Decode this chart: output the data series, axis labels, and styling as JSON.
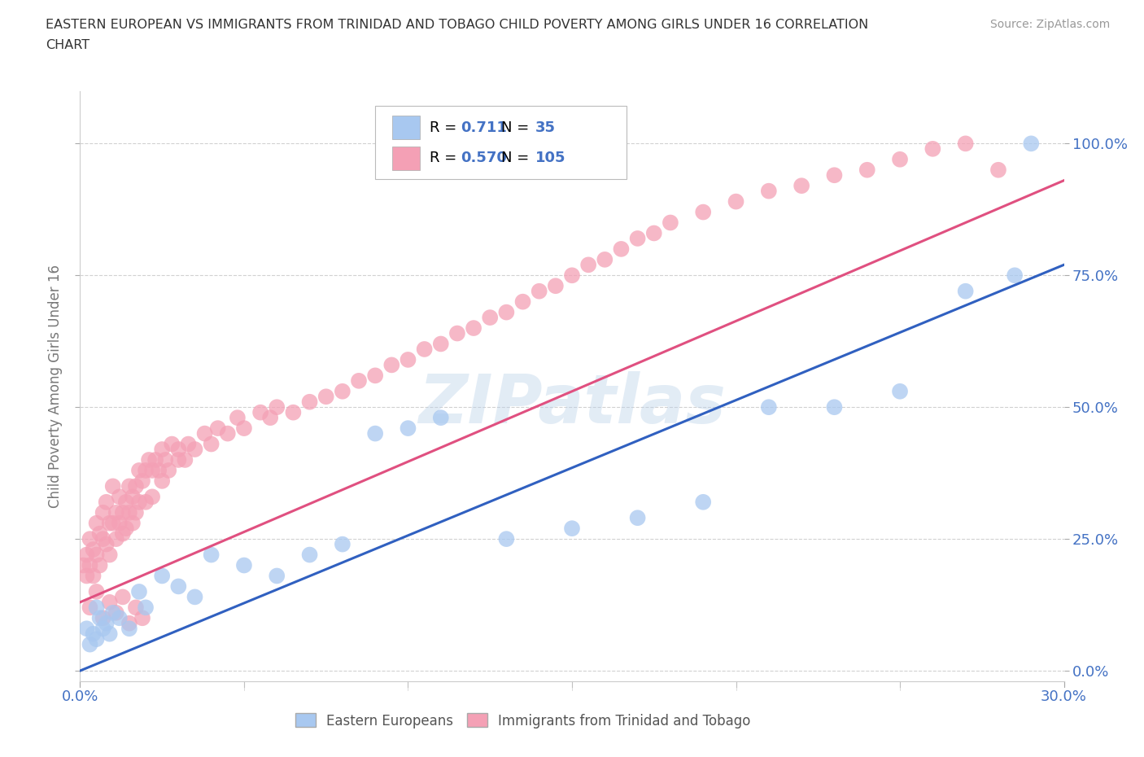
{
  "title_line1": "EASTERN EUROPEAN VS IMMIGRANTS FROM TRINIDAD AND TOBAGO CHILD POVERTY AMONG GIRLS UNDER 16 CORRELATION",
  "title_line2": "CHART",
  "source": "Source: ZipAtlas.com",
  "ylabel": "Child Poverty Among Girls Under 16",
  "xlim": [
    0.0,
    0.3
  ],
  "ylim": [
    -0.02,
    1.1
  ],
  "yticks": [
    0.0,
    0.25,
    0.5,
    0.75,
    1.0
  ],
  "ytick_labels": [
    "0.0%",
    "25.0%",
    "50.0%",
    "75.0%",
    "100.0%"
  ],
  "xticks": [
    0.0,
    0.3
  ],
  "xtick_labels": [
    "0.0%",
    "30.0%"
  ],
  "blue_R": "0.711",
  "blue_N": "35",
  "pink_R": "0.570",
  "pink_N": "105",
  "blue_color": "#A8C8F0",
  "pink_color": "#F4A0B5",
  "blue_line_color": "#3060C0",
  "pink_line_color": "#E05080",
  "grid_color": "#CCCCCC",
  "background_color": "#FFFFFF",
  "watermark": "ZIPatlas",
  "legend_color": "#4472C4",
  "blue_scatter_x": [
    0.002,
    0.003,
    0.004,
    0.005,
    0.005,
    0.006,
    0.007,
    0.008,
    0.009,
    0.01,
    0.012,
    0.015,
    0.018,
    0.02,
    0.025,
    0.03,
    0.035,
    0.04,
    0.05,
    0.06,
    0.07,
    0.08,
    0.09,
    0.1,
    0.11,
    0.13,
    0.15,
    0.17,
    0.19,
    0.21,
    0.23,
    0.25,
    0.27,
    0.285,
    0.29
  ],
  "blue_scatter_y": [
    0.08,
    0.05,
    0.07,
    0.12,
    0.06,
    0.1,
    0.08,
    0.09,
    0.07,
    0.11,
    0.1,
    0.08,
    0.15,
    0.12,
    0.18,
    0.16,
    0.14,
    0.22,
    0.2,
    0.18,
    0.22,
    0.24,
    0.45,
    0.46,
    0.48,
    0.25,
    0.27,
    0.29,
    0.32,
    0.5,
    0.5,
    0.53,
    0.72,
    0.75,
    1.0
  ],
  "pink_scatter_x": [
    0.001,
    0.002,
    0.002,
    0.003,
    0.003,
    0.004,
    0.004,
    0.005,
    0.005,
    0.006,
    0.006,
    0.007,
    0.007,
    0.008,
    0.008,
    0.009,
    0.009,
    0.01,
    0.01,
    0.011,
    0.011,
    0.012,
    0.012,
    0.013,
    0.013,
    0.014,
    0.014,
    0.015,
    0.015,
    0.016,
    0.016,
    0.017,
    0.017,
    0.018,
    0.018,
    0.019,
    0.02,
    0.02,
    0.021,
    0.022,
    0.022,
    0.023,
    0.024,
    0.025,
    0.025,
    0.026,
    0.027,
    0.028,
    0.03,
    0.03,
    0.032,
    0.033,
    0.035,
    0.038,
    0.04,
    0.042,
    0.045,
    0.048,
    0.05,
    0.055,
    0.058,
    0.06,
    0.065,
    0.07,
    0.075,
    0.08,
    0.085,
    0.09,
    0.095,
    0.1,
    0.105,
    0.11,
    0.115,
    0.12,
    0.125,
    0.13,
    0.135,
    0.14,
    0.145,
    0.15,
    0.155,
    0.16,
    0.165,
    0.17,
    0.175,
    0.18,
    0.19,
    0.2,
    0.21,
    0.22,
    0.23,
    0.24,
    0.25,
    0.26,
    0.27,
    0.28,
    0.003,
    0.005,
    0.007,
    0.009,
    0.011,
    0.013,
    0.015,
    0.017,
    0.019
  ],
  "pink_scatter_y": [
    0.2,
    0.22,
    0.18,
    0.25,
    0.2,
    0.23,
    0.18,
    0.28,
    0.22,
    0.26,
    0.2,
    0.3,
    0.25,
    0.32,
    0.24,
    0.28,
    0.22,
    0.35,
    0.28,
    0.3,
    0.25,
    0.33,
    0.28,
    0.3,
    0.26,
    0.32,
    0.27,
    0.35,
    0.3,
    0.33,
    0.28,
    0.35,
    0.3,
    0.38,
    0.32,
    0.36,
    0.38,
    0.32,
    0.4,
    0.38,
    0.33,
    0.4,
    0.38,
    0.42,
    0.36,
    0.4,
    0.38,
    0.43,
    0.4,
    0.42,
    0.4,
    0.43,
    0.42,
    0.45,
    0.43,
    0.46,
    0.45,
    0.48,
    0.46,
    0.49,
    0.48,
    0.5,
    0.49,
    0.51,
    0.52,
    0.53,
    0.55,
    0.56,
    0.58,
    0.59,
    0.61,
    0.62,
    0.64,
    0.65,
    0.67,
    0.68,
    0.7,
    0.72,
    0.73,
    0.75,
    0.77,
    0.78,
    0.8,
    0.82,
    0.83,
    0.85,
    0.87,
    0.89,
    0.91,
    0.92,
    0.94,
    0.95,
    0.97,
    0.99,
    1.0,
    0.95,
    0.12,
    0.15,
    0.1,
    0.13,
    0.11,
    0.14,
    0.09,
    0.12,
    0.1
  ]
}
